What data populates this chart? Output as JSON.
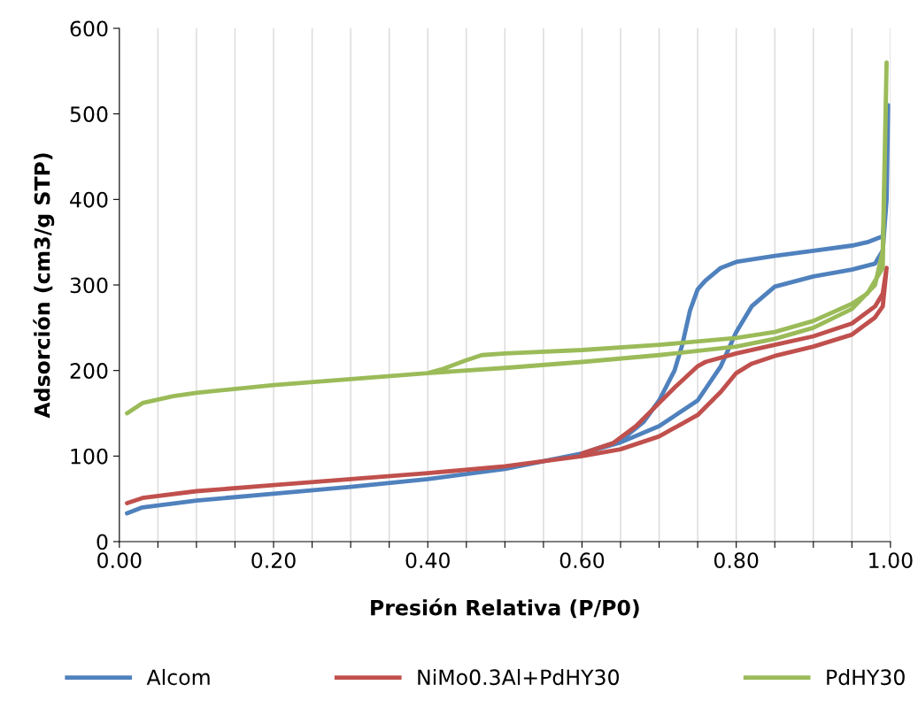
{
  "chart_data": {
    "type": "line",
    "xlabel": "Presión Relativa (P/P0)",
    "ylabel": "Adsorción (cm3/g STP)",
    "xlim": [
      0,
      1
    ],
    "xticks": [
      {
        "value": 0,
        "label": "0.00"
      },
      {
        "value": 0.05,
        "label": null
      },
      {
        "value": 0.1,
        "label": null
      },
      {
        "value": 0.15,
        "label": null
      },
      {
        "value": 0.2,
        "label": "0.20"
      },
      {
        "value": 0.25,
        "label": null
      },
      {
        "value": 0.3,
        "label": null
      },
      {
        "value": 0.35,
        "label": null
      },
      {
        "value": 0.4,
        "label": "0.40"
      },
      {
        "value": 0.45,
        "label": null
      },
      {
        "value": 0.5,
        "label": null
      },
      {
        "value": 0.55,
        "label": null
      },
      {
        "value": 0.6,
        "label": "0.60"
      },
      {
        "value": 0.65,
        "label": null
      },
      {
        "value": 0.7,
        "label": null
      },
      {
        "value": 0.75,
        "label": null
      },
      {
        "value": 0.8,
        "label": "0.80"
      },
      {
        "value": 0.85,
        "label": null
      },
      {
        "value": 0.9,
        "label": null
      },
      {
        "value": 0.95,
        "label": null
      },
      {
        "value": 1,
        "label": "1.00"
      }
    ],
    "ylim": [
      0,
      600
    ],
    "yticks": [
      0,
      100,
      200,
      300,
      400,
      500,
      600
    ],
    "grid": "x",
    "legend": "bottom",
    "marker": "none",
    "line_style": "solid",
    "series": [
      {
        "name": "Alcom",
        "color": "#4f81bd",
        "x": [
          0.01,
          0.03,
          0.1,
          0.2,
          0.3,
          0.4,
          0.5,
          0.6,
          0.65,
          0.7,
          0.75,
          0.78,
          0.8,
          0.82,
          0.85,
          0.9,
          0.95,
          0.98,
          0.99,
          0.995,
          0.997,
          0.995,
          0.99,
          0.97,
          0.95,
          0.9,
          0.85,
          0.8,
          0.78,
          0.76,
          0.75,
          0.74,
          0.73,
          0.72,
          0.7,
          0.68,
          0.65,
          0.6
        ],
        "values": [
          33,
          40,
          48,
          56,
          64,
          73,
          85,
          103,
          116,
          135,
          165,
          205,
          245,
          275,
          298,
          310,
          318,
          325,
          340,
          400,
          510,
          400,
          357,
          350,
          346,
          340,
          334,
          327,
          320,
          305,
          295,
          270,
          230,
          200,
          165,
          140,
          118,
          103
        ]
      },
      {
        "name": "NiMo0.3Al+PdHY30",
        "color": "#c0504d",
        "x": [
          0.01,
          0.03,
          0.1,
          0.2,
          0.3,
          0.4,
          0.5,
          0.6,
          0.65,
          0.7,
          0.75,
          0.78,
          0.8,
          0.82,
          0.85,
          0.9,
          0.95,
          0.98,
          0.99,
          0.995,
          0.99,
          0.98,
          0.95,
          0.9,
          0.85,
          0.8,
          0.76,
          0.75,
          0.72,
          0.7,
          0.67,
          0.64,
          0.6
        ],
        "values": [
          45,
          51,
          59,
          66,
          73,
          80,
          88,
          100,
          108,
          123,
          148,
          175,
          197,
          208,
          217,
          228,
          242,
          262,
          275,
          320,
          290,
          275,
          255,
          240,
          230,
          220,
          210,
          205,
          180,
          162,
          135,
          115,
          103
        ]
      },
      {
        "name": "PdHY30",
        "color": "#9bbb59",
        "x": [
          0.01,
          0.03,
          0.07,
          0.1,
          0.2,
          0.3,
          0.4,
          0.5,
          0.6,
          0.7,
          0.8,
          0.85,
          0.9,
          0.95,
          0.98,
          0.99,
          0.995,
          0.99,
          0.97,
          0.95,
          0.9,
          0.85,
          0.8,
          0.7,
          0.6,
          0.5,
          0.47,
          0.45,
          0.42,
          0.4
        ],
        "values": [
          150,
          162,
          170,
          174,
          183,
          190,
          197,
          203,
          210,
          218,
          228,
          237,
          250,
          272,
          300,
          340,
          560,
          320,
          290,
          278,
          258,
          245,
          238,
          230,
          224,
          220,
          218,
          212,
          202,
          197
        ]
      }
    ]
  }
}
